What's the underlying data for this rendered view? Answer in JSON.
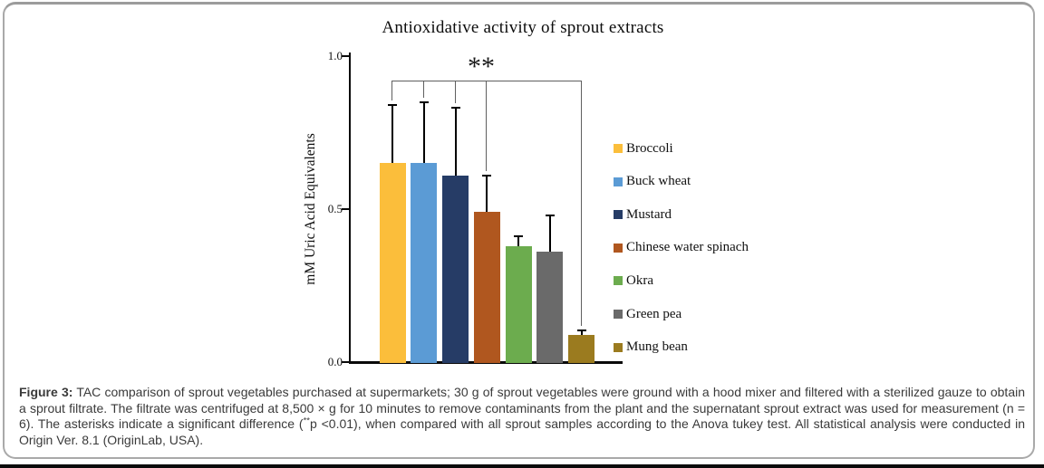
{
  "chart_data": {
    "type": "bar",
    "title": "Antioxidative activity of sprout extracts",
    "ylabel": "mM Uric Acid Equivalents",
    "ylim": [
      0,
      1.0
    ],
    "yticks": [
      {
        "label": "0.0",
        "value": 0
      },
      {
        "label": "0.5",
        "value": 0.5
      },
      {
        "label": "1.0",
        "value": 1.0
      }
    ],
    "grid": "off",
    "legend_position": "right",
    "categories": [
      "Broccoli",
      "Buck wheat",
      "Mustard",
      "Chinese water spinach",
      "Okra",
      "Green pea",
      "Mung bean"
    ],
    "values": [
      0.65,
      0.65,
      0.61,
      0.49,
      0.38,
      0.36,
      0.09
    ],
    "errors_upper": [
      0.19,
      0.2,
      0.22,
      0.12,
      0.03,
      0.12,
      0.015
    ],
    "colors": [
      "#FBBE3B",
      "#5B9BD5",
      "#263C66",
      "#B0571F",
      "#6CAC4E",
      "#6A6A6A",
      "#9B7B1F"
    ],
    "significance": {
      "label": "**",
      "level_value": 0.92,
      "connect_indices": [
        0,
        1,
        2,
        3,
        6
      ],
      "connects": [
        "Broccoli",
        "Buck wheat",
        "Mustard",
        "Chinese water spinach",
        "Mung bean"
      ]
    }
  },
  "caption": {
    "label": "Figure 3:",
    "body_before_sup": " TAC comparison of sprout vegetables purchased at supermarkets; 30 g of sprout vegetables were ground with a hood mixer and filtered with a sterilized gauze to obtain a sprout filtrate. The filtrate was centrifuged at 8,500 × g for 10 minutes to remove contaminants from the plant and the supernatant sprout extract was used for measurement (n = 6). The asterisks indicate a significant difference (",
    "sup": "**",
    "body_after_sup": "p <0.01), when compared with all sprout samples according to the Anova tukey test. All statistical analysis were conducted in Origin Ver. 8.1 (OriginLab, USA)."
  }
}
